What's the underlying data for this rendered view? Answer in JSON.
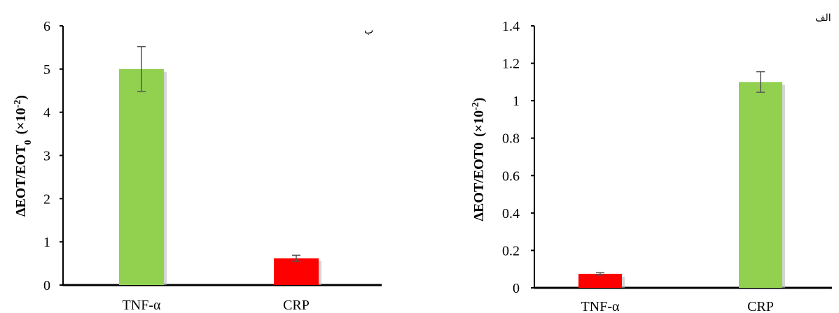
{
  "chart_data": [
    {
      "type": "bar",
      "panel_label": "ب",
      "ylabel_main": "ΔEOT/EOT",
      "ylabel_sub": "0",
      "ylabel_unit": "(×10",
      "ylabel_exp": "-2",
      "ylabel_close": ")",
      "ylim": [
        0,
        6
      ],
      "yticks": [
        "0",
        "1",
        "2",
        "3",
        "4",
        "5",
        "6"
      ],
      "categories": [
        "TNF-α",
        "CRP"
      ],
      "values": [
        5.0,
        0.62
      ],
      "errors": [
        0.52,
        0.07
      ],
      "colors": [
        "#92d050",
        "#ff0000"
      ],
      "grid": false
    },
    {
      "type": "bar",
      "panel_label": "الف",
      "ylabel_main": "ΔEOT/EOT0",
      "ylabel_unit": "(×10",
      "ylabel_exp": "-2",
      "ylabel_close": ")",
      "ylim": [
        0,
        1.4
      ],
      "yticks": [
        "0",
        "0.2",
        "0.4",
        "0.6",
        "0.8",
        "1",
        "1.2",
        "1.4"
      ],
      "categories": [
        "TNF-α",
        "CRP"
      ],
      "values": [
        0.075,
        1.1
      ],
      "errors": [
        0.006,
        0.055
      ],
      "colors": [
        "#ff0000",
        "#92d050"
      ],
      "grid": false
    }
  ]
}
